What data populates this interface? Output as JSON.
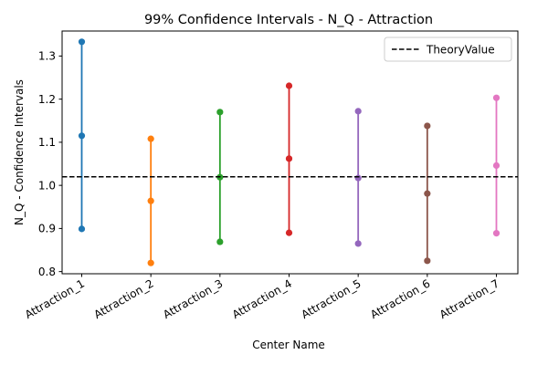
{
  "chart_data": {
    "type": "errorbar",
    "title": "99% Confidence Intervals - N_Q - Attraction",
    "xlabel": "Center Name",
    "ylabel": "N_Q - Confidence Intervals",
    "categories": [
      "Attraction_1",
      "Attraction_2",
      "Attraction_3",
      "Attraction_4",
      "Attraction_5",
      "Attraction_6",
      "Attraction_7"
    ],
    "lower": [
      0.899,
      0.82,
      0.869,
      0.89,
      0.865,
      0.825,
      0.889
    ],
    "center": [
      1.115,
      0.964,
      1.019,
      1.062,
      1.017,
      0.981,
      1.046
    ],
    "upper": [
      1.333,
      1.108,
      1.17,
      1.231,
      1.172,
      1.138,
      1.203
    ],
    "colors": [
      "#1f77b4",
      "#ff7f0e",
      "#2ca02c",
      "#d62728",
      "#9467bd",
      "#8c564b",
      "#e377c2"
    ],
    "theory_value": 1.02,
    "theory_label": "TheoryValue",
    "ylim": [
      0.795,
      1.358
    ],
    "yticks": [
      0.8,
      0.9,
      1.0,
      1.1,
      1.2,
      1.3
    ],
    "ytick_labels": [
      "0.8",
      "0.9",
      "1.0",
      "1.1",
      "1.2",
      "1.3"
    ],
    "legend_position": "top-right",
    "grid": false
  }
}
